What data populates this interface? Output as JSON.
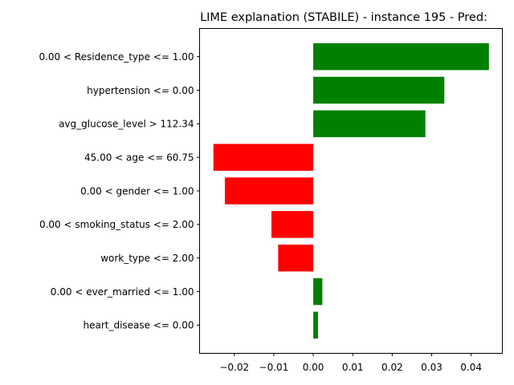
{
  "chart_data": {
    "type": "bar",
    "orientation": "horizontal",
    "title": "LIME explanation (STABILE) - instance 195 - Pred:",
    "xlabel": "",
    "ylabel": "",
    "categories": [
      "0.00 < Residence_type <= 1.00",
      "hypertension <= 0.00",
      "avg_glucose_level > 112.34",
      "45.00 < age <= 60.75",
      "0.00 < gender <= 1.00",
      "0.00 < smoking_status <= 2.00",
      "work_type <= 2.00",
      "0.00 < ever_married <= 1.00",
      "heart_disease <= 0.00"
    ],
    "values": [
      0.0445,
      0.0332,
      0.0284,
      -0.0253,
      -0.0224,
      -0.0106,
      -0.0089,
      0.0023,
      0.0012
    ],
    "xlim": [
      -0.0288,
      0.0479
    ],
    "xticks": [
      -0.02,
      -0.01,
      0.0,
      0.01,
      0.02,
      0.03,
      0.04
    ],
    "xtick_labels": [
      "−0.02",
      "−0.01",
      "0.00",
      "0.01",
      "0.02",
      "0.03",
      "0.04"
    ],
    "positive_color": "#008000",
    "negative_color": "#ff0000",
    "grid": false,
    "legend": "none"
  }
}
